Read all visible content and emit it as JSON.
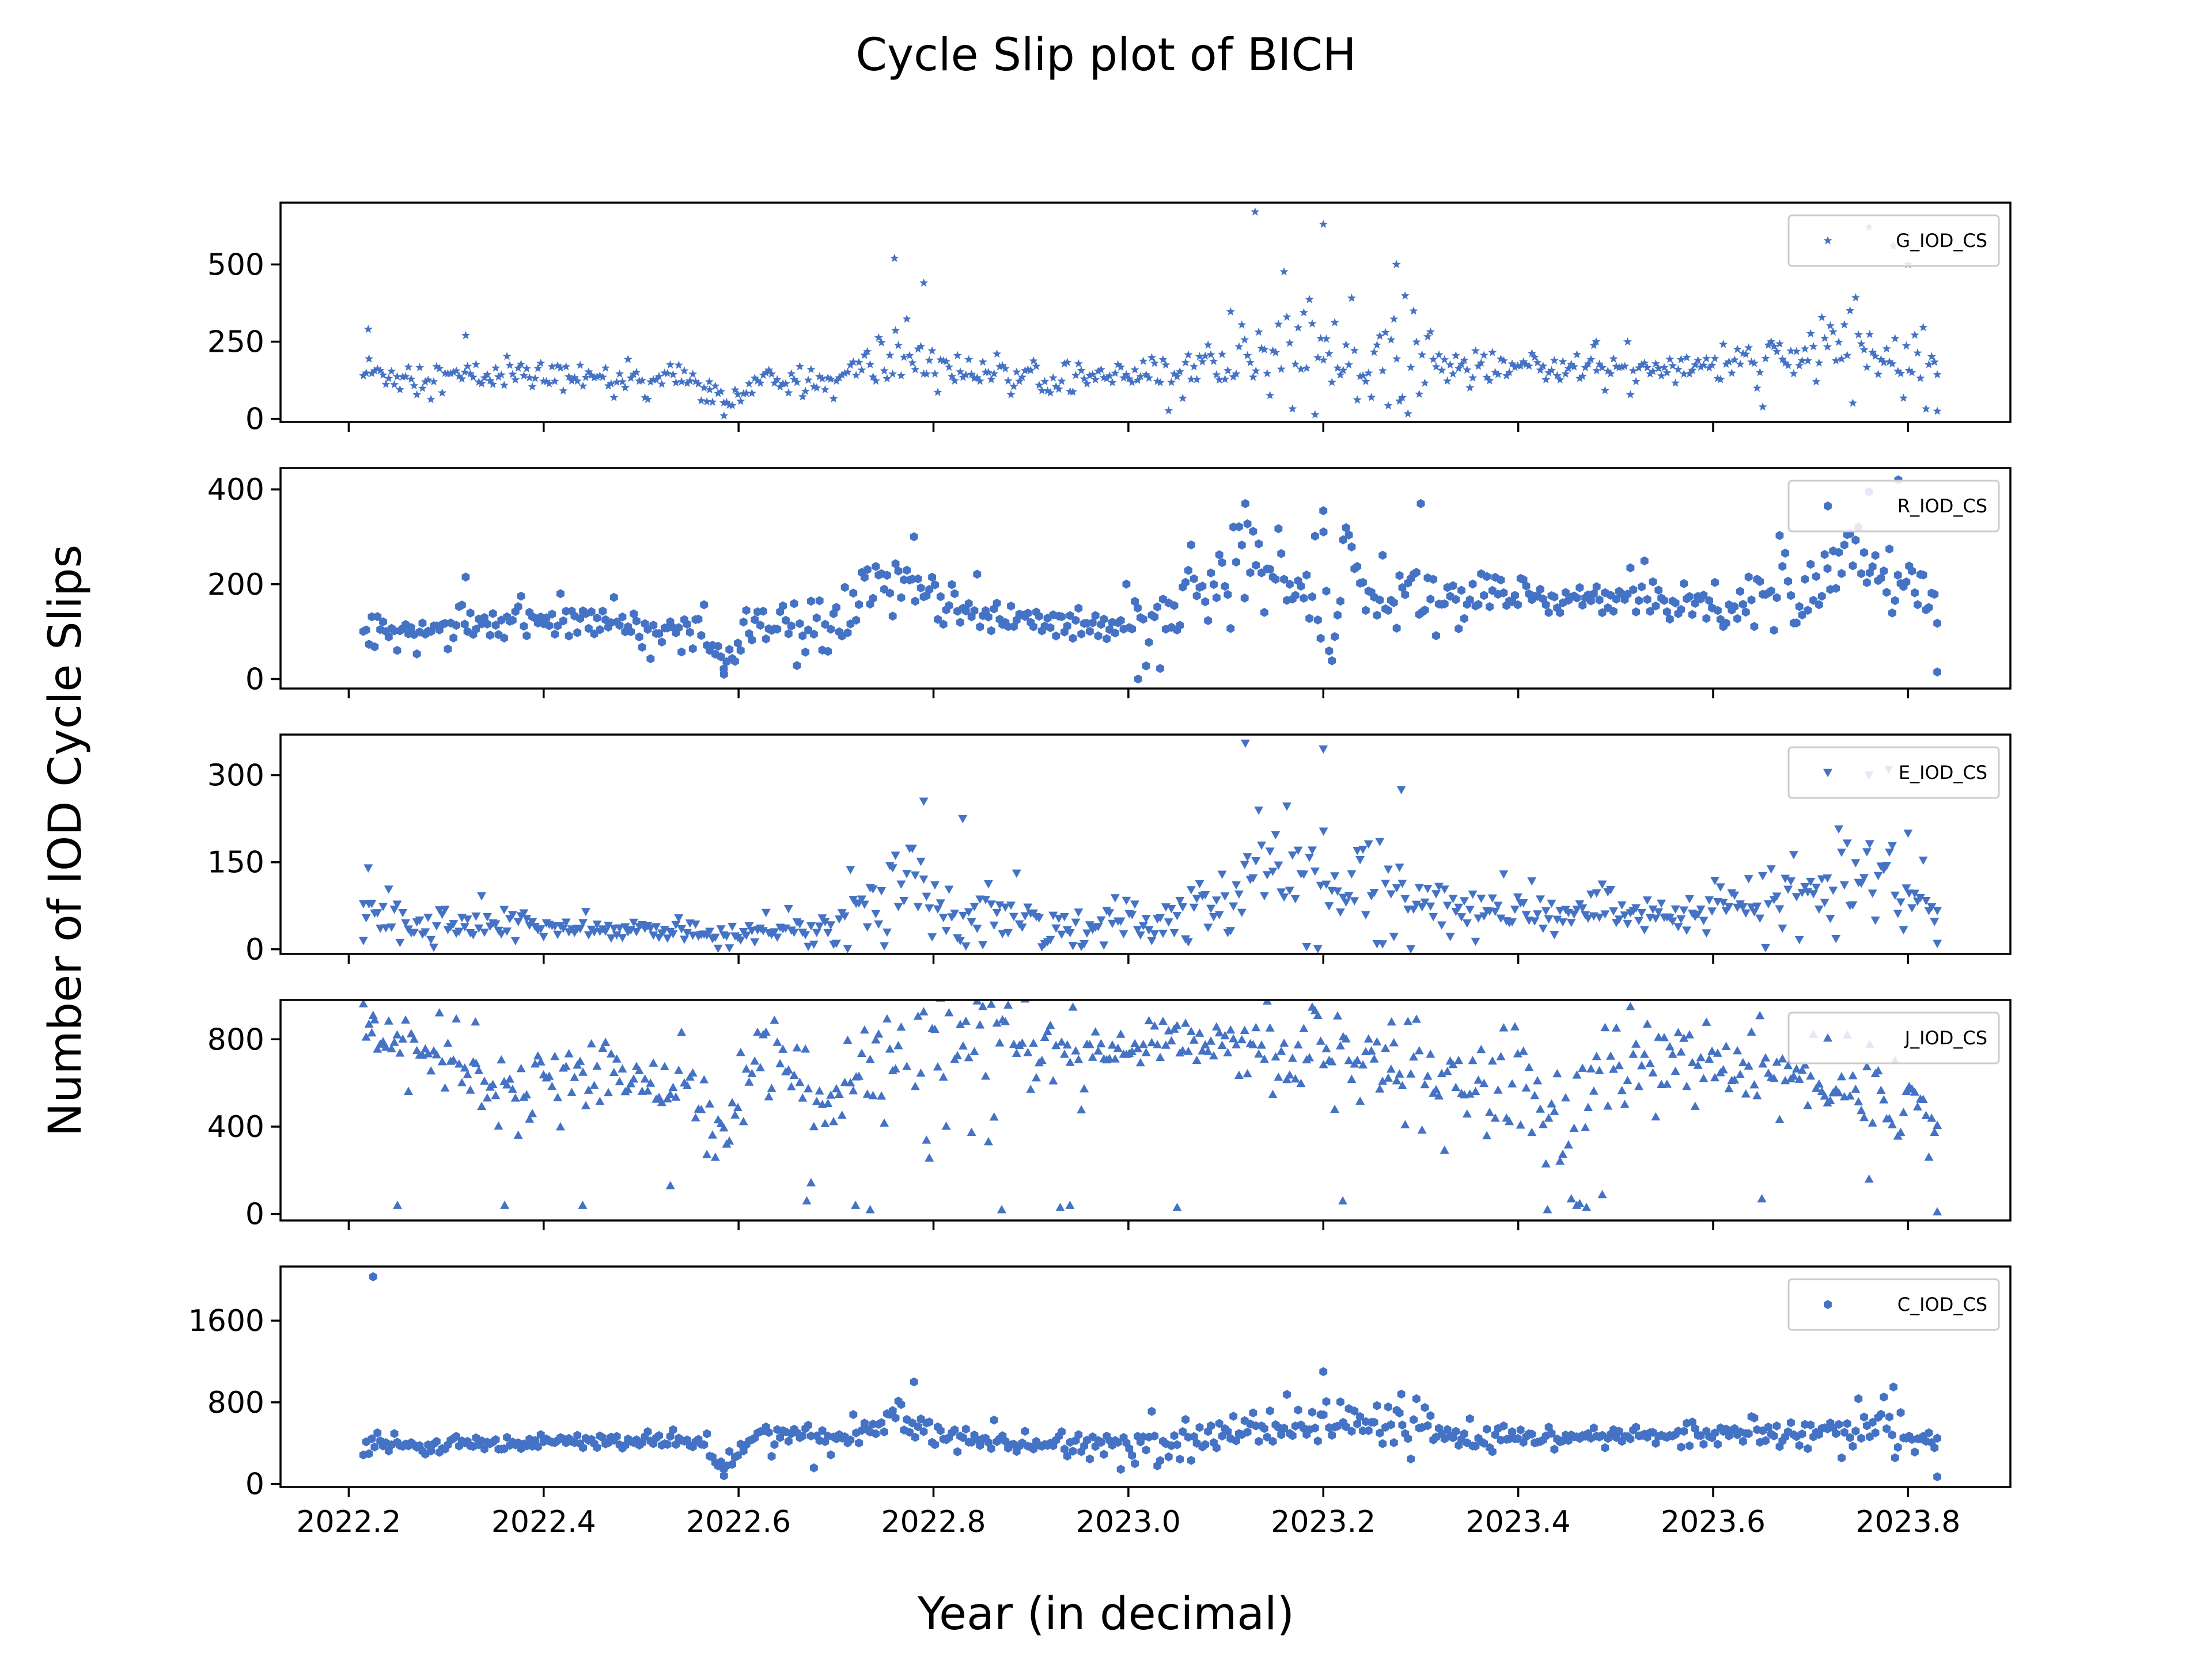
{
  "figure": {
    "title": "Cycle Slip plot of BICH",
    "xlabel": "Year (in decimal)",
    "ylabel": "Number of IOD Cycle Slips",
    "marker_color": "#4472c4"
  },
  "chart_data": [
    {
      "type": "scatter",
      "series_name": "G_IOD_CS",
      "marker": "star",
      "xlim": [
        2022.13,
        2023.905
      ],
      "ylim": [
        -10,
        700
      ],
      "yticks": [
        0,
        250,
        500
      ],
      "xticks": [
        "2022.2",
        "2022.4",
        "2022.6",
        "2022.8",
        "2023.0",
        "2023.2",
        "2023.4",
        "2023.6",
        "2023.8"
      ],
      "show_xtick_labels": false,
      "legend": "top-right",
      "grid": false,
      "trend": [
        [
          2022.215,
          150
        ],
        [
          2022.3,
          135
        ],
        [
          2022.4,
          140
        ],
        [
          2022.5,
          130
        ],
        [
          2022.55,
          125
        ],
        [
          2022.585,
          50
        ],
        [
          2022.62,
          120
        ],
        [
          2022.7,
          120
        ],
        [
          2022.77,
          220
        ],
        [
          2022.83,
          150
        ],
        [
          2022.95,
          130
        ],
        [
          2023.05,
          145
        ],
        [
          2023.12,
          200
        ],
        [
          2023.2,
          200
        ],
        [
          2023.3,
          170
        ],
        [
          2023.45,
          165
        ],
        [
          2023.6,
          170
        ],
        [
          2023.68,
          190
        ],
        [
          2023.75,
          220
        ],
        [
          2023.83,
          150
        ]
      ],
      "spread": [
        [
          2022.215,
          60
        ],
        [
          2022.3,
          50
        ],
        [
          2022.5,
          30
        ],
        [
          2022.7,
          40
        ],
        [
          2022.77,
          130
        ],
        [
          2022.83,
          40
        ],
        [
          2023.0,
          40
        ],
        [
          2023.1,
          80
        ],
        [
          2023.15,
          160
        ],
        [
          2023.3,
          100
        ],
        [
          2023.35,
          35
        ],
        [
          2023.6,
          45
        ],
        [
          2023.75,
          120
        ],
        [
          2023.83,
          60
        ]
      ],
      "extremes": [
        [
          2022.22,
          290
        ],
        [
          2022.32,
          270
        ],
        [
          2022.76,
          520
        ],
        [
          2022.79,
          440
        ],
        [
          2023.13,
          670
        ],
        [
          2023.2,
          630
        ],
        [
          2023.275,
          500
        ],
        [
          2023.48,
          250
        ],
        [
          2023.76,
          620
        ],
        [
          2023.785,
          560
        ],
        [
          2023.8,
          500
        ],
        [
          2022.585,
          10
        ],
        [
          2023.83,
          25
        ],
        [
          2022.57,
          120
        ]
      ]
    },
    {
      "type": "scatter",
      "series_name": "R_IOD_CS",
      "marker": "circle",
      "xlim": [
        2022.13,
        2023.905
      ],
      "ylim": [
        -20,
        445
      ],
      "yticks": [
        0,
        200,
        400
      ],
      "xticks": [
        "2022.2",
        "2022.4",
        "2022.6",
        "2022.8",
        "2023.0",
        "2023.2",
        "2023.4",
        "2023.6",
        "2023.8"
      ],
      "show_xtick_labels": false,
      "legend": "top-right",
      "grid": false,
      "trend": [
        [
          2022.215,
          110
        ],
        [
          2022.3,
          110
        ],
        [
          2022.4,
          125
        ],
        [
          2022.5,
          110
        ],
        [
          2022.56,
          105
        ],
        [
          2022.585,
          30
        ],
        [
          2022.62,
          110
        ],
        [
          2022.7,
          110
        ],
        [
          2022.77,
          230
        ],
        [
          2022.83,
          140
        ],
        [
          2022.95,
          110
        ],
        [
          2023.05,
          150
        ],
        [
          2023.12,
          250
        ],
        [
          2023.2,
          190
        ],
        [
          2023.3,
          180
        ],
        [
          2023.4,
          170
        ],
        [
          2023.5,
          175
        ],
        [
          2023.6,
          160
        ],
        [
          2023.7,
          200
        ],
        [
          2023.75,
          250
        ],
        [
          2023.83,
          150
        ]
      ],
      "spread": [
        [
          2022.215,
          30
        ],
        [
          2022.4,
          30
        ],
        [
          2022.6,
          30
        ],
        [
          2022.77,
          70
        ],
        [
          2022.9,
          20
        ],
        [
          2023.12,
          80
        ],
        [
          2023.25,
          80
        ],
        [
          2023.4,
          30
        ],
        [
          2023.6,
          40
        ],
        [
          2023.75,
          90
        ],
        [
          2023.83,
          40
        ]
      ],
      "extremes": [
        [
          2022.32,
          215
        ],
        [
          2022.78,
          300
        ],
        [
          2023.12,
          370
        ],
        [
          2023.2,
          355
        ],
        [
          2023.3,
          370
        ],
        [
          2023.01,
          0
        ],
        [
          2023.79,
          420
        ],
        [
          2023.76,
          395
        ],
        [
          2023.83,
          15
        ],
        [
          2022.585,
          10
        ]
      ]
    },
    {
      "type": "scatter",
      "series_name": "E_IOD_CS",
      "marker": "triangle-down",
      "xlim": [
        2022.13,
        2023.905
      ],
      "ylim": [
        -8,
        370
      ],
      "yticks": [
        0,
        150,
        300
      ],
      "xticks": [
        "2022.2",
        "2022.4",
        "2022.6",
        "2022.8",
        "2023.0",
        "2023.2",
        "2023.4",
        "2023.6",
        "2023.8"
      ],
      "show_xtick_labels": false,
      "legend": "top-right",
      "grid": false,
      "trend": [
        [
          2022.215,
          60
        ],
        [
          2022.25,
          45
        ],
        [
          2022.4,
          40
        ],
        [
          2022.55,
          30
        ],
        [
          2022.58,
          20
        ],
        [
          2022.65,
          35
        ],
        [
          2022.7,
          45
        ],
        [
          2022.77,
          130
        ],
        [
          2022.83,
          50
        ],
        [
          2022.95,
          40
        ],
        [
          2023.05,
          55
        ],
        [
          2023.1,
          70
        ],
        [
          2023.15,
          160
        ],
        [
          2023.22,
          110
        ],
        [
          2023.3,
          90
        ],
        [
          2023.35,
          60
        ],
        [
          2023.5,
          65
        ],
        [
          2023.6,
          65
        ],
        [
          2023.7,
          90
        ],
        [
          2023.76,
          130
        ],
        [
          2023.83,
          60
        ]
      ],
      "spread": [
        [
          2022.215,
          40
        ],
        [
          2022.4,
          15
        ],
        [
          2022.6,
          12
        ],
        [
          2022.77,
          60
        ],
        [
          2023.0,
          20
        ],
        [
          2023.15,
          90
        ],
        [
          2023.3,
          50
        ],
        [
          2023.5,
          20
        ],
        [
          2023.6,
          25
        ],
        [
          2023.76,
          70
        ],
        [
          2023.83,
          30
        ]
      ],
      "extremes": [
        [
          2022.22,
          140
        ],
        [
          2022.79,
          255
        ],
        [
          2022.83,
          225
        ],
        [
          2023.12,
          355
        ],
        [
          2023.2,
          345
        ],
        [
          2023.28,
          275
        ],
        [
          2023.76,
          300
        ],
        [
          2023.78,
          310
        ],
        [
          2023.8,
          200
        ],
        [
          2023.83,
          10
        ],
        [
          2022.215,
          15
        ]
      ]
    },
    {
      "type": "scatter",
      "series_name": "J_IOD_CS",
      "marker": "triangle-up",
      "xlim": [
        2022.13,
        2023.905
      ],
      "ylim": [
        -30,
        980
      ],
      "yticks": [
        0,
        400,
        800
      ],
      "xticks": [
        "2022.2",
        "2022.4",
        "2022.6",
        "2022.8",
        "2023.0",
        "2023.2",
        "2023.4",
        "2023.6",
        "2023.8"
      ],
      "show_xtick_labels": false,
      "legend": "top-right",
      "grid": false,
      "trend": [
        [
          2022.215,
          800
        ],
        [
          2022.3,
          720
        ],
        [
          2022.35,
          600
        ],
        [
          2022.45,
          650
        ],
        [
          2022.55,
          580
        ],
        [
          2022.58,
          380
        ],
        [
          2022.62,
          720
        ],
        [
          2022.7,
          560
        ],
        [
          2022.78,
          740
        ],
        [
          2022.85,
          700
        ],
        [
          2022.9,
          740
        ],
        [
          2022.97,
          700
        ],
        [
          2023.05,
          780
        ],
        [
          2023.15,
          720
        ],
        [
          2023.25,
          700
        ],
        [
          2023.33,
          620
        ],
        [
          2023.4,
          600
        ],
        [
          2023.45,
          420
        ],
        [
          2023.5,
          720
        ],
        [
          2023.6,
          700
        ],
        [
          2023.7,
          620
        ],
        [
          2023.8,
          500
        ],
        [
          2023.83,
          400
        ]
      ],
      "spread": [
        [
          2022.215,
          100
        ],
        [
          2022.4,
          120
        ],
        [
          2022.55,
          120
        ],
        [
          2022.7,
          250
        ],
        [
          2022.85,
          300
        ],
        [
          2023.0,
          60
        ],
        [
          2023.15,
          150
        ],
        [
          2023.25,
          250
        ],
        [
          2023.35,
          150
        ],
        [
          2023.45,
          350
        ],
        [
          2023.55,
          120
        ],
        [
          2023.7,
          150
        ],
        [
          2023.8,
          120
        ]
      ],
      "extremes": [
        [
          2022.225,
          910
        ],
        [
          2022.25,
          40
        ],
        [
          2022.33,
          880
        ],
        [
          2022.36,
          40
        ],
        [
          2022.44,
          40
        ],
        [
          2022.53,
          130
        ],
        [
          2022.67,
          60
        ],
        [
          2022.72,
          40
        ],
        [
          2022.735,
          20
        ],
        [
          2022.87,
          20
        ],
        [
          2022.93,
          30
        ],
        [
          2022.94,
          40
        ],
        [
          2023.05,
          30
        ],
        [
          2023.22,
          60
        ],
        [
          2023.27,
          880
        ],
        [
          2023.43,
          20
        ],
        [
          2023.46,
          40
        ],
        [
          2023.47,
          30
        ],
        [
          2023.65,
          70
        ],
        [
          2023.76,
          160
        ],
        [
          2023.83,
          10
        ]
      ]
    },
    {
      "type": "scatter",
      "series_name": "C_IOD_CS",
      "marker": "hexagon",
      "xlim": [
        2022.13,
        2023.905
      ],
      "ylim": [
        -30,
        2130
      ],
      "yticks": [
        0,
        800,
        1600
      ],
      "xticks": [
        "2022.2",
        "2022.4",
        "2022.6",
        "2022.8",
        "2023.0",
        "2023.2",
        "2023.4",
        "2023.6",
        "2023.8"
      ],
      "show_xtick_labels": true,
      "legend": "top-right",
      "grid": false,
      "trend": [
        [
          2022.215,
          380
        ],
        [
          2022.3,
          370
        ],
        [
          2022.4,
          420
        ],
        [
          2022.5,
          410
        ],
        [
          2022.56,
          430
        ],
        [
          2022.585,
          160
        ],
        [
          2022.62,
          500
        ],
        [
          2022.7,
          450
        ],
        [
          2022.77,
          650
        ],
        [
          2022.83,
          420
        ],
        [
          2022.95,
          350
        ],
        [
          2023.05,
          430
        ],
        [
          2023.12,
          550
        ],
        [
          2023.2,
          600
        ],
        [
          2023.28,
          600
        ],
        [
          2023.35,
          420
        ],
        [
          2023.5,
          470
        ],
        [
          2023.6,
          480
        ],
        [
          2023.7,
          500
        ],
        [
          2023.76,
          600
        ],
        [
          2023.83,
          380
        ]
      ],
      "spread": [
        [
          2022.215,
          80
        ],
        [
          2022.4,
          60
        ],
        [
          2022.6,
          80
        ],
        [
          2022.77,
          220
        ],
        [
          2022.9,
          60
        ],
        [
          2023.12,
          200
        ],
        [
          2023.25,
          200
        ],
        [
          2023.4,
          50
        ],
        [
          2023.6,
          60
        ],
        [
          2023.76,
          220
        ],
        [
          2023.83,
          60
        ]
      ],
      "extremes": [
        [
          2022.225,
          2030
        ],
        [
          2022.78,
          1000
        ],
        [
          2023.2,
          1100
        ],
        [
          2023.28,
          880
        ],
        [
          2023.785,
          950
        ],
        [
          2023.83,
          70
        ],
        [
          2022.585,
          80
        ]
      ]
    }
  ]
}
